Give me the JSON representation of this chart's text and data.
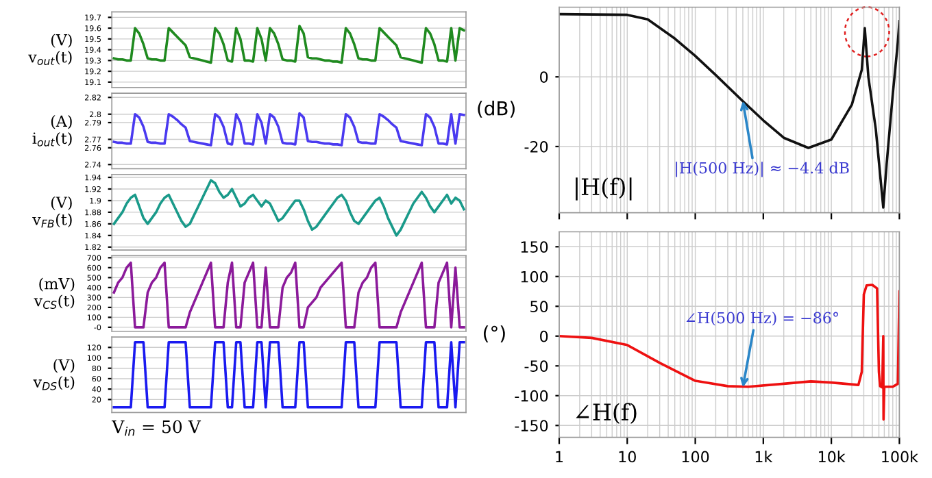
{
  "chart_data": [
    {
      "type": "line",
      "ylabel": "(V)\nv$_{out}$(t)",
      "categories": [
        null,
        null,
        null,
        null,
        null,
        null,
        null,
        null,
        null,
        null,
        null,
        null,
        null,
        null,
        null,
        null,
        null,
        null,
        null,
        null,
        null,
        null,
        null,
        null,
        null,
        null,
        null,
        null,
        null,
        null,
        null,
        null,
        null,
        null,
        null,
        null,
        null,
        null,
        null,
        null,
        null,
        null,
        null,
        null,
        null,
        null,
        null,
        null,
        null,
        null,
        null,
        null,
        null,
        null,
        null,
        null,
        null,
        null,
        null,
        null,
        null,
        null,
        null,
        null,
        null,
        null,
        null,
        null,
        null,
        null,
        null,
        null,
        null,
        null,
        null,
        null,
        null,
        null,
        null,
        null,
        null,
        null,
        null,
        null
      ],
      "series": [
        {
          "color": "#1f8a1f",
          "values": [
            19.32,
            19.31,
            19.31,
            19.3,
            19.3,
            19.6,
            19.55,
            19.45,
            19.32,
            19.31,
            19.31,
            19.3,
            19.3,
            19.6,
            19.56,
            19.52,
            19.48,
            19.44,
            19.33,
            19.32,
            19.31,
            19.3,
            19.29,
            19.28,
            19.6,
            19.55,
            19.45,
            19.3,
            19.29,
            19.6,
            19.5,
            19.3,
            19.3,
            19.29,
            19.6,
            19.5,
            19.3,
            19.6,
            19.55,
            19.45,
            19.31,
            19.3,
            19.3,
            19.29,
            19.62,
            19.55,
            19.33,
            19.32,
            19.32,
            19.31,
            19.3,
            19.3,
            19.29,
            19.29,
            19.28,
            19.6,
            19.55,
            19.45,
            19.32,
            19.31,
            19.31,
            19.3,
            19.3,
            19.6,
            19.56,
            19.52,
            19.48,
            19.44,
            19.33,
            19.32,
            19.31,
            19.3,
            19.29,
            19.28,
            19.6,
            19.55,
            19.45,
            19.3,
            19.3,
            19.29,
            19.6,
            19.3,
            19.6,
            19.58
          ]
        }
      ],
      "ylim": [
        19.05,
        19.75
      ],
      "yticks": [
        19.1,
        19.2,
        19.3,
        19.4,
        19.5,
        19.6,
        19.7
      ],
      "tick_labels": "y",
      "grid": "y"
    },
    {
      "type": "line",
      "ylabel": "(A)\ni$_{out}$(t)",
      "categories": [
        null,
        null,
        null,
        null,
        null,
        null,
        null,
        null,
        null,
        null,
        null,
        null,
        null,
        null,
        null,
        null,
        null,
        null,
        null,
        null,
        null,
        null,
        null,
        null,
        null,
        null,
        null,
        null,
        null,
        null,
        null,
        null,
        null,
        null,
        null,
        null,
        null,
        null,
        null,
        null,
        null,
        null,
        null,
        null,
        null,
        null,
        null,
        null,
        null,
        null,
        null,
        null,
        null,
        null,
        null,
        null,
        null,
        null,
        null,
        null,
        null,
        null,
        null,
        null,
        null,
        null,
        null,
        null,
        null,
        null,
        null,
        null,
        null,
        null,
        null,
        null,
        null,
        null,
        null,
        null,
        null,
        null,
        null,
        null
      ],
      "series": [
        {
          "color": "#4a3af0",
          "values": [
            2.767,
            2.766,
            2.766,
            2.765,
            2.765,
            2.8,
            2.796,
            2.785,
            2.767,
            2.766,
            2.766,
            2.765,
            2.765,
            2.8,
            2.797,
            2.793,
            2.788,
            2.784,
            2.768,
            2.767,
            2.766,
            2.765,
            2.764,
            2.763,
            2.8,
            2.796,
            2.785,
            2.765,
            2.764,
            2.8,
            2.79,
            2.765,
            2.765,
            2.764,
            2.8,
            2.79,
            2.765,
            2.8,
            2.796,
            2.785,
            2.766,
            2.765,
            2.765,
            2.764,
            2.801,
            2.796,
            2.768,
            2.767,
            2.767,
            2.766,
            2.765,
            2.765,
            2.764,
            2.764,
            2.763,
            2.8,
            2.796,
            2.785,
            2.767,
            2.766,
            2.766,
            2.765,
            2.765,
            2.8,
            2.797,
            2.793,
            2.788,
            2.784,
            2.768,
            2.767,
            2.766,
            2.765,
            2.764,
            2.763,
            2.8,
            2.796,
            2.785,
            2.765,
            2.765,
            2.764,
            2.8,
            2.765,
            2.8,
            2.799
          ]
        }
      ],
      "ylim": [
        2.735,
        2.825
      ],
      "yticks": [
        2.74,
        2.76,
        2.77,
        2.79,
        2.8,
        2.82
      ],
      "tick_labels": "y",
      "grid": "y"
    },
    {
      "type": "line",
      "ylabel": "(V)\nv$_{FB}$(t)",
      "categories": [
        null,
        null,
        null,
        null,
        null,
        null,
        null,
        null,
        null,
        null,
        null,
        null,
        null,
        null,
        null,
        null,
        null,
        null,
        null,
        null,
        null,
        null,
        null,
        null,
        null,
        null,
        null,
        null,
        null,
        null,
        null,
        null,
        null,
        null,
        null,
        null,
        null,
        null,
        null,
        null,
        null,
        null,
        null,
        null,
        null,
        null,
        null,
        null,
        null,
        null,
        null,
        null,
        null,
        null,
        null,
        null,
        null,
        null,
        null,
        null,
        null,
        null,
        null,
        null,
        null,
        null,
        null,
        null,
        null,
        null,
        null,
        null,
        null,
        null,
        null,
        null,
        null,
        null,
        null,
        null,
        null,
        null,
        null,
        null
      ],
      "series": [
        {
          "color": "#1a9a8a",
          "values": [
            1.86,
            1.87,
            1.88,
            1.895,
            1.905,
            1.91,
            1.89,
            1.87,
            1.86,
            1.87,
            1.88,
            1.895,
            1.905,
            1.91,
            1.895,
            1.88,
            1.865,
            1.855,
            1.86,
            1.875,
            1.89,
            1.905,
            1.92,
            1.935,
            1.93,
            1.915,
            1.905,
            1.91,
            1.92,
            1.905,
            1.89,
            1.895,
            1.905,
            1.91,
            1.9,
            1.89,
            1.9,
            1.895,
            1.88,
            1.865,
            1.87,
            1.88,
            1.89,
            1.9,
            1.9,
            1.885,
            1.865,
            1.85,
            1.855,
            1.865,
            1.875,
            1.885,
            1.895,
            1.905,
            1.91,
            1.9,
            1.88,
            1.865,
            1.86,
            1.87,
            1.88,
            1.89,
            1.9,
            1.905,
            1.89,
            1.87,
            1.855,
            1.84,
            1.85,
            1.865,
            1.88,
            1.895,
            1.905,
            1.915,
            1.905,
            1.89,
            1.88,
            1.89,
            1.9,
            1.91,
            1.895,
            1.905,
            1.9,
            1.885
          ]
        }
      ],
      "ylim": [
        1.815,
        1.945
      ],
      "yticks": [
        1.82,
        1.84,
        1.86,
        1.88,
        1.9,
        1.92,
        1.94
      ],
      "tick_labels": "y",
      "grid": "y"
    },
    {
      "type": "line",
      "ylabel": "(mV)\nv$_{CS}$(t)",
      "categories": [
        null,
        null,
        null,
        null,
        null,
        null,
        null,
        null,
        null,
        null,
        null,
        null,
        null,
        null,
        null,
        null,
        null,
        null,
        null,
        null,
        null,
        null,
        null,
        null,
        null,
        null,
        null,
        null,
        null,
        null,
        null,
        null,
        null,
        null,
        null,
        null,
        null,
        null,
        null,
        null,
        null,
        null,
        null,
        null,
        null,
        null,
        null,
        null,
        null,
        null,
        null,
        null,
        null,
        null,
        null,
        null,
        null,
        null,
        null,
        null,
        null,
        null,
        null,
        null,
        null,
        null,
        null,
        null,
        null,
        null,
        null,
        null,
        null,
        null,
        null,
        null,
        null,
        null,
        null,
        null,
        null,
        null,
        null,
        null
      ],
      "series": [
        {
          "color": "#8b1a9a",
          "values": [
            350,
            450,
            500,
            600,
            650,
            0,
            0,
            0,
            350,
            450,
            500,
            600,
            650,
            0,
            0,
            0,
            0,
            0,
            150,
            250,
            350,
            450,
            550,
            650,
            0,
            0,
            0,
            450,
            650,
            0,
            0,
            450,
            550,
            650,
            0,
            0,
            600,
            0,
            0,
            0,
            400,
            500,
            550,
            650,
            0,
            0,
            200,
            250,
            300,
            400,
            450,
            500,
            550,
            600,
            650,
            0,
            0,
            0,
            350,
            450,
            500,
            600,
            650,
            0,
            0,
            0,
            0,
            0,
            150,
            250,
            350,
            450,
            550,
            650,
            0,
            0,
            0,
            450,
            550,
            650,
            0,
            600,
            0,
            0
          ]
        }
      ],
      "ylim": [
        -40,
        720
      ],
      "yticks": [
        {
          "value": 0,
          "label": "-0"
        },
        100,
        200,
        300,
        400,
        500,
        600,
        700
      ],
      "tick_labels": "y",
      "grid": "y"
    },
    {
      "type": "line",
      "ylabel": "(V)\nv$_{DS}$(t)",
      "annotations": [
        "V$_{in}$ = 50 V"
      ],
      "categories": [
        null,
        null,
        null,
        null,
        null,
        null,
        null,
        null,
        null,
        null,
        null,
        null,
        null,
        null,
        null,
        null,
        null,
        null,
        null,
        null,
        null,
        null,
        null,
        null,
        null,
        null,
        null,
        null,
        null,
        null,
        null,
        null,
        null,
        null,
        null,
        null,
        null,
        null,
        null,
        null,
        null,
        null,
        null,
        null,
        null,
        null,
        null,
        null,
        null,
        null,
        null,
        null,
        null,
        null,
        null,
        null,
        null,
        null,
        null,
        null,
        null,
        null,
        null,
        null,
        null,
        null,
        null,
        null,
        null,
        null,
        null,
        null,
        null,
        null,
        null,
        null,
        null,
        null,
        null,
        null,
        null,
        null,
        null,
        null
      ],
      "series": [
        {
          "color": "#1a1af0",
          "values": [
            5,
            5,
            5,
            5,
            5,
            130,
            130,
            130,
            5,
            5,
            5,
            5,
            5,
            130,
            130,
            130,
            130,
            130,
            5,
            5,
            5,
            5,
            5,
            5,
            130,
            130,
            130,
            5,
            5,
            130,
            130,
            5,
            5,
            5,
            130,
            130,
            5,
            130,
            130,
            130,
            5,
            5,
            5,
            5,
            130,
            130,
            5,
            5,
            5,
            5,
            5,
            5,
            5,
            5,
            5,
            130,
            130,
            130,
            5,
            5,
            5,
            5,
            5,
            130,
            130,
            130,
            130,
            130,
            5,
            5,
            5,
            5,
            5,
            5,
            130,
            130,
            130,
            5,
            5,
            5,
            130,
            5,
            130,
            130
          ]
        }
      ],
      "ylim": [
        -5,
        140
      ],
      "yticks": [
        20,
        40,
        60,
        80,
        100,
        120
      ],
      "tick_labels": "y",
      "grid": "y"
    },
    {
      "type": "line",
      "ylabel": "(dB)",
      "log": "x",
      "annotations": [
        "|H(f)|",
        {
          "text": "|H(500 Hz)| ≈ −4.4 dB",
          "x": 500,
          "y": -6.9
        }
      ],
      "series": [
        {
          "color": "#111111",
          "x": [
            1,
            10,
            20,
            50,
            100,
            200,
            500,
            1000,
            2000,
            4600,
            10000,
            20000,
            28000,
            31000,
            35000,
            45000,
            58000,
            65000,
            80000,
            95000,
            100000
          ],
          "values": [
            18,
            17.8,
            16.5,
            11,
            6,
            0.5,
            -7,
            -12.5,
            -17.5,
            -20.4,
            -18,
            -8,
            2,
            14,
            0,
            -15,
            -37.5,
            -25,
            -5,
            10,
            16
          ]
        }
      ],
      "xlim": [
        1,
        100000
      ],
      "ylim": [
        -39,
        20
      ],
      "yticks": [
        -20,
        0
      ],
      "tick_labels": "y",
      "grid": true
    },
    {
      "type": "line",
      "ylabel": "(°)",
      "log": "x",
      "annotations": [
        "∠H(f)",
        {
          "text": "∠H(500 Hz) = −86°",
          "x": 500,
          "y": -86
        }
      ],
      "series": [
        {
          "color": "#ee1111",
          "x": [
            1,
            3,
            10,
            30,
            100,
            300,
            600,
            2000,
            5000,
            10000,
            25000,
            28000,
            30000,
            33000,
            40000,
            47000,
            50000,
            52000,
            56000,
            58000,
            58500,
            60000,
            80000,
            95000,
            100000
          ],
          "values": [
            0,
            -3,
            -15,
            -45,
            -75,
            -84,
            -85,
            -80,
            -76,
            -78,
            -82,
            -60,
            70,
            85,
            86,
            80,
            -60,
            -84,
            -86,
            0,
            -140,
            -85,
            -85,
            -80,
            75
          ]
        }
      ],
      "xlim": [
        1,
        100000
      ],
      "xticks": [
        1,
        10,
        100,
        {
          "value": 1000,
          "label": "1k"
        },
        {
          "value": 10000,
          "label": "10k"
        },
        {
          "value": 100000,
          "label": "100k"
        }
      ],
      "ylim": [
        -170,
        175
      ],
      "yticks": [
        -150,
        -100,
        -50,
        0,
        50,
        100,
        150
      ],
      "grid": true
    }
  ]
}
